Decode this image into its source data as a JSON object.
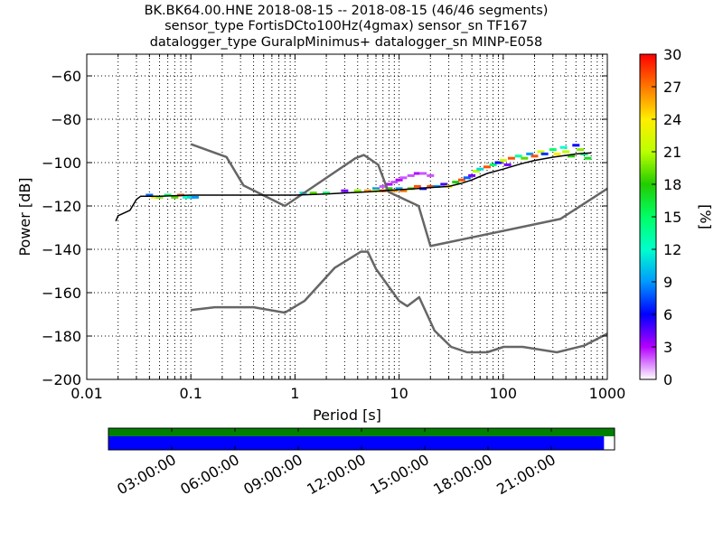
{
  "title_lines": [
    "BK.BK64.00.HNE   2018-08-15 -- 2018-08-15  (46/46 segments)",
    "sensor_type FortisDCto100Hz(4gmax) sensor_sn TF167",
    "datalogger_type GuralpMinimus+ datalogger_sn MINP-E058"
  ],
  "chart_data": [
    {
      "type": "heatmap",
      "xlabel": "Period [s]",
      "ylabel": "Power [dB]",
      "xscale": "log",
      "xlim": [
        0.01,
        1000
      ],
      "ylim": [
        -200,
        -50
      ],
      "xticks": [
        0.01,
        0.1,
        1,
        10,
        100,
        1000
      ],
      "xtick_labels": [
        "0.01",
        "0.1",
        "1",
        "10",
        "100",
        "1000"
      ],
      "yticks": [
        -200,
        -180,
        -160,
        -140,
        -120,
        -100,
        -80,
        -60
      ],
      "ytick_labels": [
        "−200",
        "−180",
        "−160",
        "−140",
        "−120",
        "−100",
        "−80",
        "−60"
      ],
      "grid": true,
      "colorbar": {
        "label": "[%]",
        "range": [
          0,
          30
        ],
        "ticks": [
          0,
          3,
          6,
          9,
          12,
          15,
          18,
          21,
          24,
          27,
          30
        ],
        "tick_labels": [
          "0",
          "3",
          "6",
          "9",
          "12",
          "15",
          "18",
          "21",
          "24",
          "27",
          "30"
        ],
        "colormap": "pqlx"
      },
      "noise_models": {
        "color": "#666666",
        "high": {
          "x": [
            0.1,
            0.22,
            0.32,
            0.8,
            3.8,
            4.6,
            6.3,
            7.9,
            15.4,
            20,
            354,
            1000
          ],
          "y": [
            -91.5,
            -97.4,
            -110.5,
            -120,
            -98,
            -96.5,
            -101,
            -113.5,
            -120,
            -138.5,
            -126,
            -112
          ]
        },
        "low": {
          "x": [
            0.1,
            0.17,
            0.4,
            0.8,
            1.24,
            2.4,
            4.3,
            5,
            6,
            10,
            12,
            15.6,
            21.9,
            31.6,
            45,
            70,
            101,
            154,
            328,
            600,
            1000
          ],
          "y": [
            -168,
            -166.7,
            -166.7,
            -169.2,
            -163.7,
            -148.6,
            -141.1,
            -141.1,
            -149,
            -163.8,
            -166.2,
            -162.1,
            -177.5,
            -185,
            -187.5,
            -187.5,
            -185,
            -185,
            -187.5,
            -184.4,
            -178.9
          ]
        }
      },
      "mode_line": {
        "color": "#000000",
        "x": [
          0.019,
          0.02,
          0.026,
          0.03,
          0.033,
          0.05,
          0.1,
          0.5,
          1,
          2,
          3,
          5,
          7,
          10,
          15,
          20,
          30,
          40,
          50,
          70,
          100,
          150,
          200,
          300,
          500,
          700
        ],
        "y": [
          -127,
          -124.5,
          -122,
          -117,
          -115.5,
          -115.5,
          -115,
          -115,
          -115,
          -114.5,
          -114,
          -113.5,
          -113,
          -112.5,
          -112,
          -111.5,
          -111,
          -109.5,
          -108,
          -105,
          -103,
          -100.5,
          -99,
          -97.5,
          -96,
          -95.5
        ]
      },
      "pdf_cells": [
        {
          "x": 0.04,
          "y": -115,
          "pct": 8
        },
        {
          "x": 0.045,
          "y": -116,
          "pct": 24
        },
        {
          "x": 0.05,
          "y": -116,
          "pct": 20
        },
        {
          "x": 0.06,
          "y": -115,
          "pct": 15
        },
        {
          "x": 0.07,
          "y": -116,
          "pct": 19
        },
        {
          "x": 0.08,
          "y": -115,
          "pct": 28
        },
        {
          "x": 0.09,
          "y": -116,
          "pct": 12
        },
        {
          "x": 0.1,
          "y": -116,
          "pct": 11
        },
        {
          "x": 0.11,
          "y": -116,
          "pct": 9
        },
        {
          "x": 1.2,
          "y": -114,
          "pct": 11
        },
        {
          "x": 1.5,
          "y": -114,
          "pct": 19
        },
        {
          "x": 2,
          "y": -114,
          "pct": 15
        },
        {
          "x": 3,
          "y": -113,
          "pct": 4
        },
        {
          "x": 4,
          "y": -113,
          "pct": 20
        },
        {
          "x": 5,
          "y": -113,
          "pct": 26
        },
        {
          "x": 6,
          "y": -112,
          "pct": 9
        },
        {
          "x": 6,
          "y": -113,
          "pct": 22
        },
        {
          "x": 7,
          "y": -111,
          "pct": 2
        },
        {
          "x": 7,
          "y": -113,
          "pct": 28
        },
        {
          "x": 8,
          "y": -110,
          "pct": 3
        },
        {
          "x": 8,
          "y": -112,
          "pct": 18
        },
        {
          "x": 9,
          "y": -109,
          "pct": 2
        },
        {
          "x": 9,
          "y": -113,
          "pct": 26
        },
        {
          "x": 10,
          "y": -108,
          "pct": 3
        },
        {
          "x": 10,
          "y": -112,
          "pct": 9
        },
        {
          "x": 11,
          "y": -107,
          "pct": 2
        },
        {
          "x": 11,
          "y": -113,
          "pct": 27
        },
        {
          "x": 13,
          "y": -106,
          "pct": 2
        },
        {
          "x": 13,
          "y": -112,
          "pct": 19
        },
        {
          "x": 15,
          "y": -105,
          "pct": 3
        },
        {
          "x": 15,
          "y": -111,
          "pct": 28
        },
        {
          "x": 17,
          "y": -105,
          "pct": 2
        },
        {
          "x": 17,
          "y": -112,
          "pct": 6
        },
        {
          "x": 20,
          "y": -106,
          "pct": 2
        },
        {
          "x": 20,
          "y": -111,
          "pct": 28
        },
        {
          "x": 23,
          "y": -111,
          "pct": 9
        },
        {
          "x": 27,
          "y": -110,
          "pct": 5
        },
        {
          "x": 30,
          "y": -111,
          "pct": 24
        },
        {
          "x": 35,
          "y": -109,
          "pct": 18
        },
        {
          "x": 40,
          "y": -108,
          "pct": 28
        },
        {
          "x": 45,
          "y": -107,
          "pct": 8
        },
        {
          "x": 50,
          "y": -106,
          "pct": 4
        },
        {
          "x": 55,
          "y": -104,
          "pct": 21
        },
        {
          "x": 60,
          "y": -103,
          "pct": 11
        },
        {
          "x": 70,
          "y": -102,
          "pct": 28
        },
        {
          "x": 80,
          "y": -101,
          "pct": 15
        },
        {
          "x": 90,
          "y": -100,
          "pct": 6
        },
        {
          "x": 100,
          "y": -99,
          "pct": 22
        },
        {
          "x": 110,
          "y": -101,
          "pct": 4
        },
        {
          "x": 120,
          "y": -98,
          "pct": 28
        },
        {
          "x": 140,
          "y": -97,
          "pct": 13
        },
        {
          "x": 160,
          "y": -98,
          "pct": 19
        },
        {
          "x": 180,
          "y": -96,
          "pct": 9
        },
        {
          "x": 200,
          "y": -97,
          "pct": 28
        },
        {
          "x": 230,
          "y": -95,
          "pct": 22
        },
        {
          "x": 250,
          "y": -96,
          "pct": 7
        },
        {
          "x": 300,
          "y": -94,
          "pct": 15
        },
        {
          "x": 330,
          "y": -96,
          "pct": 24
        },
        {
          "x": 380,
          "y": -93,
          "pct": 12
        },
        {
          "x": 400,
          "y": -95,
          "pct": 21
        },
        {
          "x": 450,
          "y": -97,
          "pct": 18
        },
        {
          "x": 500,
          "y": -92,
          "pct": 6
        },
        {
          "x": 550,
          "y": -94,
          "pct": 20
        },
        {
          "x": 600,
          "y": -96,
          "pct": 14
        },
        {
          "x": 650,
          "y": -98,
          "pct": 17
        }
      ]
    },
    {
      "type": "bar",
      "role": "data-availability",
      "time_ticks": [
        "03:00:00",
        "06:00:00",
        "09:00:00",
        "12:00:00",
        "15:00:00",
        "18:00:00",
        "21:00:00"
      ],
      "time_tick_hours": [
        3,
        6,
        9,
        12,
        15,
        18,
        21
      ],
      "range_hours": [
        0,
        24
      ],
      "rows": [
        {
          "color": "#008000",
          "spans": [
            [
              0,
              24
            ]
          ]
        },
        {
          "color": "#0000ff",
          "spans": [
            [
              0,
              23.5
            ]
          ]
        }
      ]
    }
  ]
}
